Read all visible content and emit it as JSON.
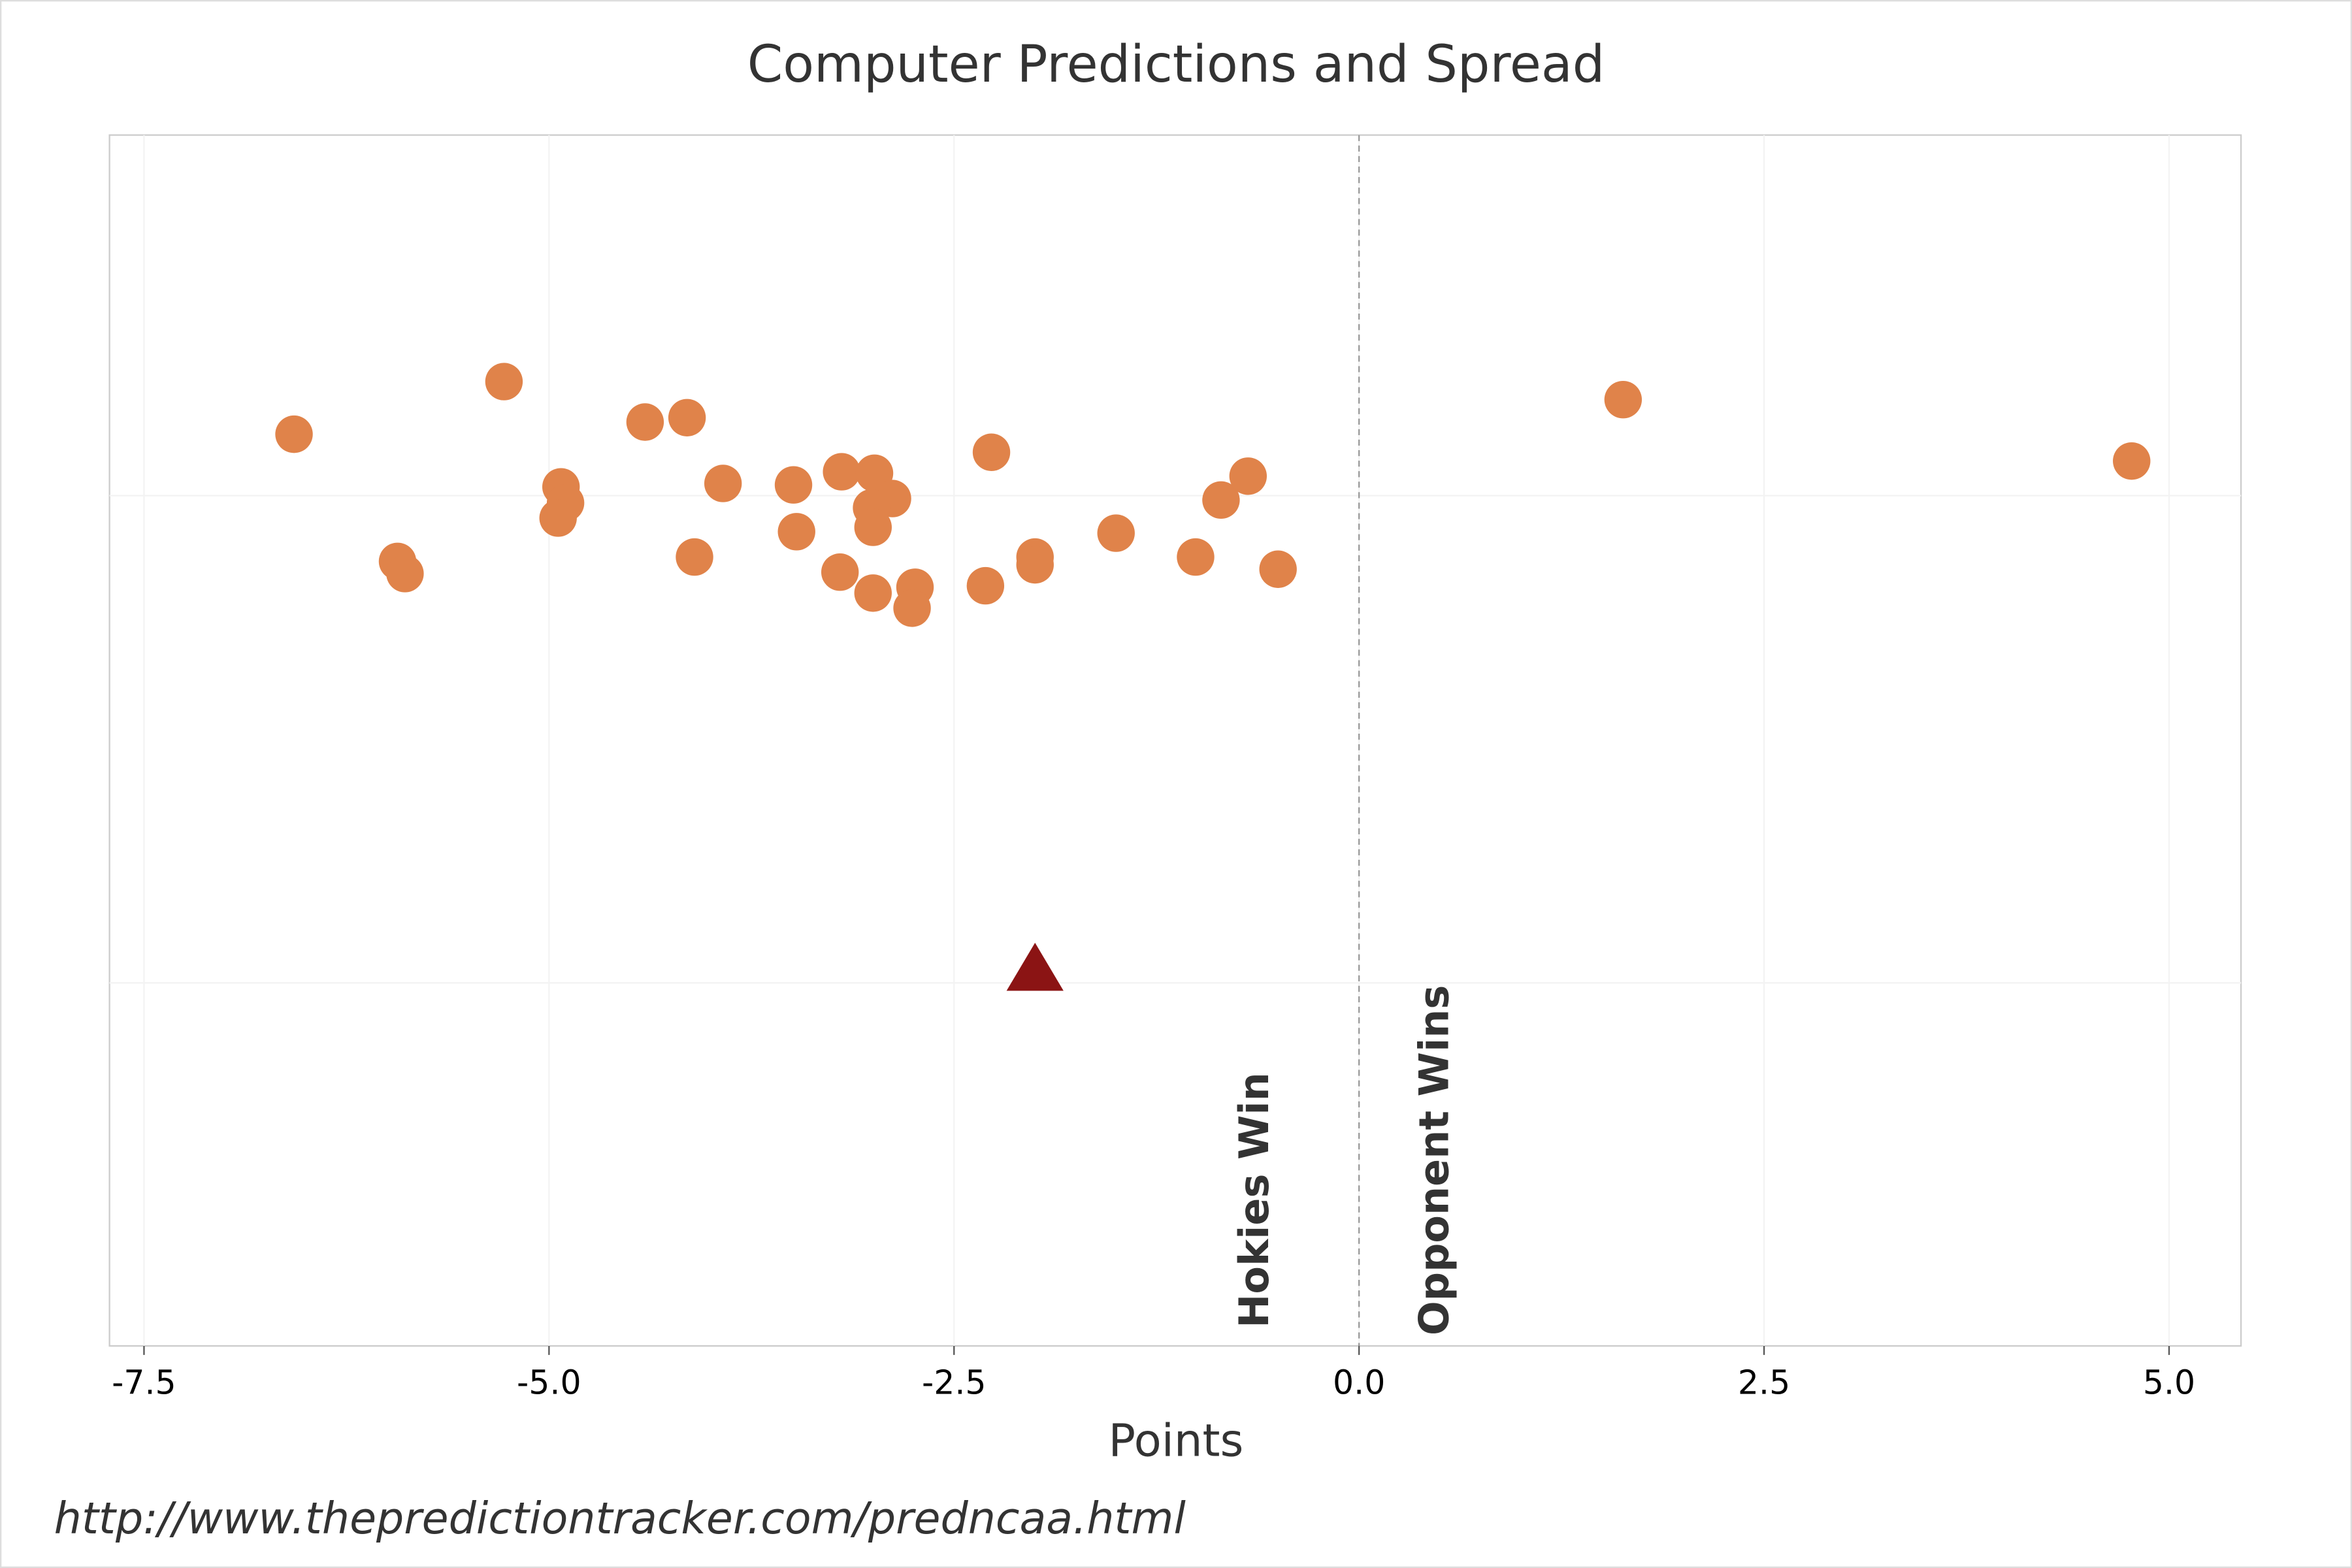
{
  "chart_data": {
    "type": "scatter",
    "title": "Computer Predictions and Spread",
    "xlabel": "Points",
    "xlim": [
      -7.713,
      5.444
    ],
    "xticks": [
      {
        "value": -7.5,
        "label": "-7.5"
      },
      {
        "value": -5,
        "label": "-5.0"
      },
      {
        "value": -2.5,
        "label": "-2.5"
      },
      {
        "value": 0,
        "label": "0.0"
      },
      {
        "value": 2.5,
        "label": "2.5"
      },
      {
        "value": 5,
        "label": "5.0"
      }
    ],
    "ylim": [
      -0.745,
      1.74
    ],
    "yticks": [
      0,
      1
    ],
    "grid": true,
    "vline": 0,
    "series": [
      {
        "color": "#e0834a",
        "marker": "circle",
        "x": [
          -6.574,
          -5.278,
          -4.407,
          -4.148,
          -4.926,
          -4.898,
          -4.944,
          -5.935,
          -5.889,
          -4.102,
          -3.926,
          -3.491,
          -3.472,
          -3.194,
          -2.991,
          -2.88,
          -3.009,
          -3.0,
          -3.204,
          -3.0,
          -2.741,
          -2.759,
          -2.306,
          -2.269,
          -2.0,
          -2.0,
          -1.5,
          -1.009,
          -0.852,
          -0.685,
          -0.5,
          1.63,
          4.769
        ],
        "values": [
          1.126,
          1.234,
          1.151,
          1.16,
          1.018,
          0.985,
          0.954,
          0.865,
          0.84,
          0.874,
          1.025,
          1.022,
          0.926,
          1.049,
          1.046,
          0.994,
          0.975,
          0.935,
          0.843,
          0.8,
          0.812,
          0.769,
          0.815,
          1.089,
          0.874,
          0.858,
          0.923,
          0.874,
          0.991,
          1.04,
          0.849,
          1.197,
          1.071
        ]
      },
      {
        "color": "#8b1414",
        "marker": "triangle",
        "x": [
          -2.0
        ],
        "values": [
          0.03
        ]
      }
    ],
    "annotations": [
      "Hokies Win",
      "Opponent Wins"
    ],
    "source": "http://www.thepredictiontracker.com/predncaa.html"
  }
}
